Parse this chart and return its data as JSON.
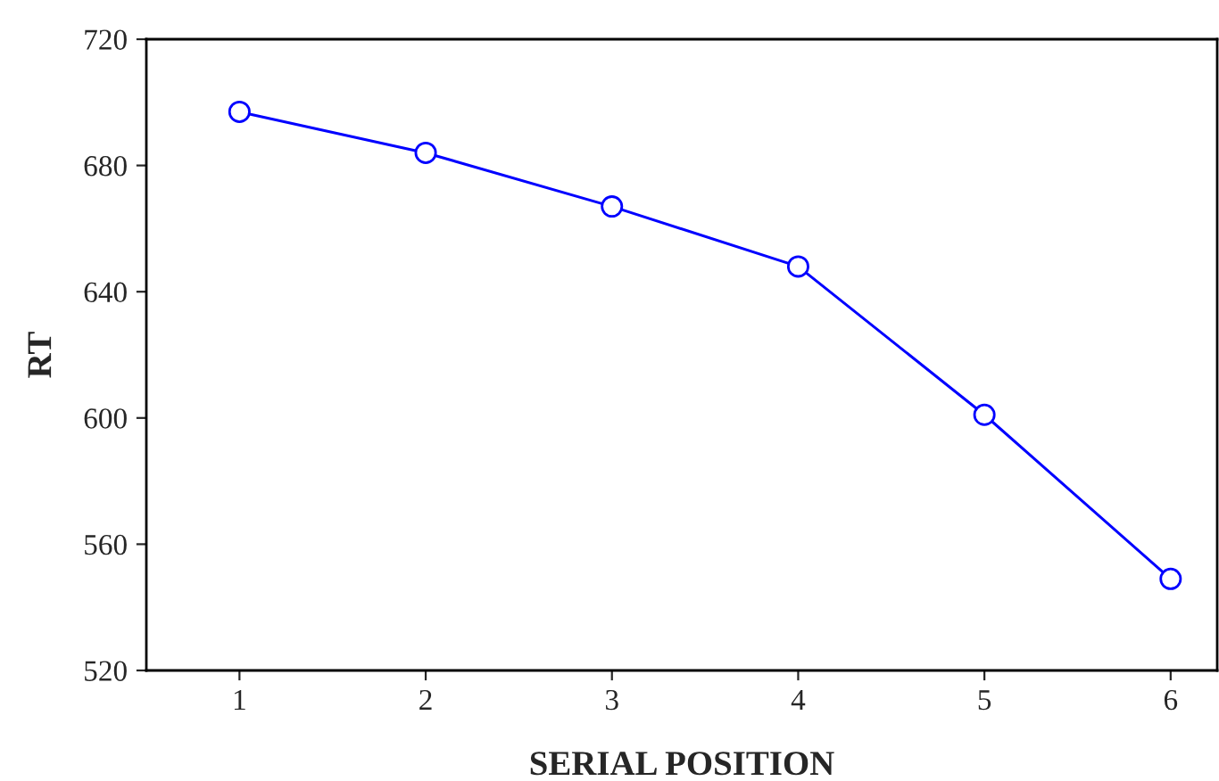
{
  "chart_data": {
    "type": "line",
    "xlabel": "SERIAL POSITION",
    "ylabel": "RT",
    "x": [
      1,
      2,
      3,
      4,
      5,
      6
    ],
    "series": [
      {
        "color": "#0000ff",
        "values": [
          697,
          684,
          667,
          648,
          601,
          549
        ]
      }
    ],
    "xlim": [
      0.5,
      6.25
    ],
    "xticks": [
      1,
      2,
      3,
      4,
      5,
      6
    ],
    "ylim": [
      520,
      720
    ],
    "yticks": [
      520,
      560,
      600,
      640,
      680,
      720
    ],
    "marker": "circle",
    "line_style": "solid",
    "grid": false,
    "legend": false
  }
}
